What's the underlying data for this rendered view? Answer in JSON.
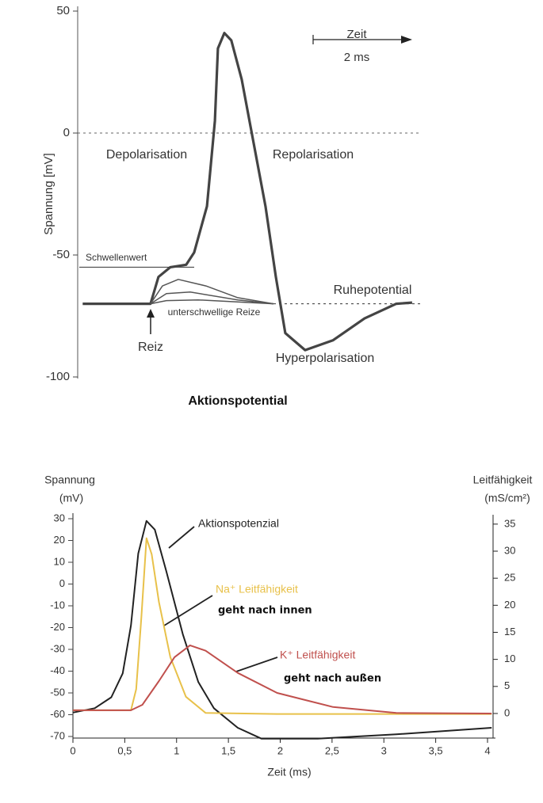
{
  "chart_data": [
    {
      "type": "line",
      "title": "Aktionspotential",
      "y_label": "Spannung [mV]",
      "xlim": [
        0,
        7
      ],
      "ylim": [
        -100,
        50
      ],
      "yticks": [
        -100,
        -50,
        0,
        50
      ],
      "zero_line": true,
      "scale_bar": {
        "label": "Zeit",
        "length_label": "2 ms"
      },
      "annotations": [
        "Depolarisation",
        "Repolarisation",
        "Hyperpolarisation",
        "Reiz",
        "unterschwellige Reize"
      ],
      "hlines": [
        {
          "value": -55,
          "label": "Schwellenwert",
          "style": "solid"
        },
        {
          "value": -70,
          "label": "Ruhepotential",
          "style": "dotted"
        }
      ],
      "series": [
        {
          "color": "#444444",
          "width": 3.2,
          "x": [
            0.1,
            1.47,
            1.63,
            1.87,
            2.19,
            2.35,
            2.61,
            2.77,
            2.83,
            2.96,
            3.1,
            3.31,
            3.55,
            3.79,
            4.0,
            4.19,
            4.59,
            5.15,
            5.79,
            6.43,
            6.75
          ],
          "values": [
            -70,
            -70,
            -59,
            -55,
            -54,
            -49,
            -30,
            5,
            34.7,
            41,
            38,
            22,
            -4,
            -30,
            -59,
            -82,
            -89,
            -85,
            -76,
            -70,
            -69.5
          ]
        },
        {
          "color": "#555555",
          "width": 1.5,
          "x": [
            1.47,
            1.71,
            2.03,
            2.59,
            3.23,
            3.95
          ],
          "values": [
            -70,
            -62.7,
            -60,
            -62.7,
            -67.5,
            -70
          ]
        },
        {
          "color": "#555555",
          "width": 1.5,
          "x": [
            1.47,
            1.79,
            2.27,
            3.23,
            3.95
          ],
          "values": [
            -70,
            -65.8,
            -65.2,
            -68.4,
            -70
          ]
        },
        {
          "color": "#555555",
          "width": 1.5,
          "x": [
            1.47,
            1.79,
            2.43,
            3.95
          ],
          "values": [
            -70,
            -68.7,
            -68.4,
            -70
          ]
        }
      ]
    },
    {
      "type": "line",
      "x_label": "Zeit (ms)",
      "y_label": [
        "Spannung",
        "(mV)"
      ],
      "y2_label": [
        "Leitfähigkeit",
        "(mS/cm²)"
      ],
      "xlim": [
        0,
        4
      ],
      "ylim": [
        -70,
        30
      ],
      "y2lim": [
        -4.25,
        36
      ],
      "xticks": [
        0,
        {
          "value": 0.5,
          "label": "0,5"
        },
        1,
        {
          "value": 1.5,
          "label": "1,5"
        },
        2,
        {
          "value": 2.5,
          "label": "2,5"
        },
        3,
        {
          "value": 3.5,
          "label": "3,5"
        },
        4
      ],
      "yticks": [
        -70,
        -60,
        -50,
        -40,
        -30,
        -20,
        -10,
        0,
        10,
        20,
        30
      ],
      "y2ticks": [
        0,
        5,
        10,
        15,
        20,
        25,
        30,
        35
      ],
      "notes": [
        "geht nach innen",
        "geht nach außen"
      ],
      "series": [
        {
          "name": "Aktionspotenzial",
          "color": "#222222",
          "x": [
            0,
            0.21,
            0.37,
            0.48,
            0.56,
            0.63,
            0.71,
            0.79,
            0.9,
            1.06,
            1.21,
            1.36,
            1.59,
            1.82,
            2.36,
            3.12,
            4.04
          ],
          "values": [
            -59,
            -57,
            -52,
            -41,
            -19,
            14,
            29,
            25,
            6,
            -23,
            -45,
            -57,
            -66,
            -71,
            -71,
            -69,
            -66
          ]
        },
        {
          "name": "Na⁺ Leitfähigkeit",
          "color": "#e8c14a",
          "axis": "y2",
          "x": [
            0,
            0.56,
            0.61,
            0.66,
            0.71,
            0.76,
            0.83,
            0.94,
            1.09,
            1.28,
            1.97,
            4.04
          ],
          "values": [
            0.6,
            0.6,
            4.5,
            17.7,
            32.4,
            29.4,
            20.6,
            10.4,
            3.1,
            0.1,
            -0.1,
            -0.1
          ]
        },
        {
          "name": "K⁺ Leitfähigkeit",
          "color": "#c0504d",
          "axis": "y2",
          "x": [
            0,
            0.56,
            0.67,
            0.83,
            0.98,
            1.13,
            1.28,
            1.59,
            1.97,
            2.51,
            3.12,
            4.04
          ],
          "values": [
            0.6,
            0.6,
            1.6,
            6,
            10.4,
            12.6,
            11.6,
            7.5,
            3.8,
            1.2,
            0.1,
            0
          ]
        }
      ]
    }
  ]
}
